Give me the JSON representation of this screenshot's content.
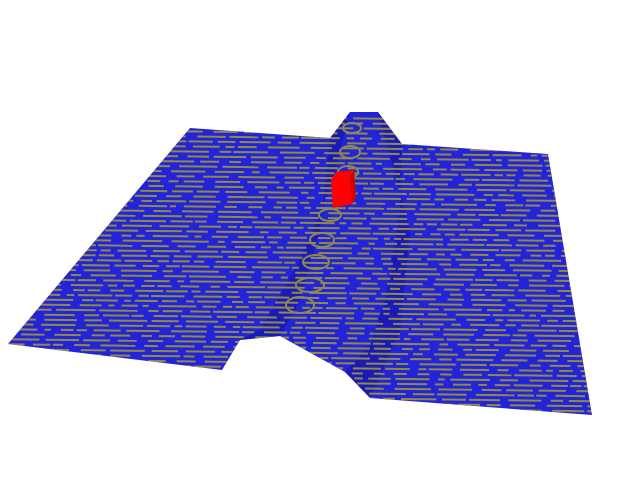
{
  "scene": {
    "background_color": "#ffffff",
    "terrain_color": "#2323d8",
    "terrain_dark_color": "#1a1ab8",
    "stripe_color": "#8e8a4e",
    "marker_color": "#ff0000",
    "marker_dark_color": "#d40000",
    "terrain_feature": "ridge",
    "marker": "red-block"
  }
}
